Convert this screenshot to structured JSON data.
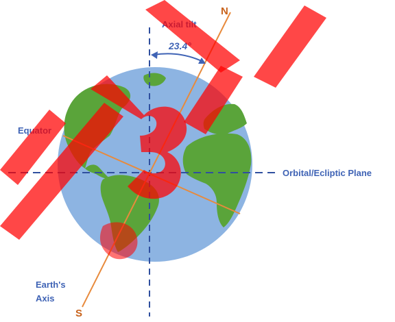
{
  "diagram": {
    "labels": {
      "north": "N",
      "south": "S",
      "axial_tilt": "Axial tilt",
      "angle": "23.4°",
      "equator": "Equator",
      "orbital_plane": "Orbital/Ecliptic Plane",
      "earth_axis_line1": "Earth's",
      "earth_axis_line2": "Axis"
    },
    "watermark": "BYJU'S",
    "colors": {
      "ocean": "#8db4e2",
      "land": "#5aa43a",
      "axis_line": "#e88a3c",
      "label_blue": "#3f63b5",
      "label_orange": "#c8621a",
      "dashed": "#2f4f9f",
      "watermark": "#ff0000"
    }
  }
}
